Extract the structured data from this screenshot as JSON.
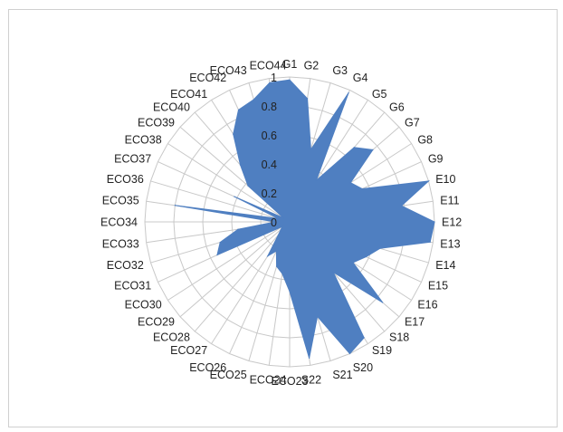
{
  "chart_data": {
    "type": "radar",
    "title": "",
    "categories": [
      "G1",
      "G2",
      "G3",
      "G4",
      "G5",
      "G6",
      "G7",
      "G8",
      "G9",
      "E10",
      "E11",
      "E12",
      "E13",
      "E14",
      "E15",
      "E16",
      "E17",
      "S18",
      "S19",
      "S20",
      "S21",
      "S22",
      "ECO23",
      "ECO24",
      "ECO25",
      "ECO26",
      "ECO27",
      "ECO28",
      "ECO29",
      "ECO30",
      "ECO31",
      "ECO32",
      "ECO33",
      "ECO34",
      "ECO35",
      "ECO36",
      "ECO37",
      "ECO38",
      "ECO39",
      "ECO40",
      "ECO41",
      "ECO42",
      "ECO43",
      "ECO44"
    ],
    "series": [
      {
        "values": [
          0.98,
          0.86,
          0.52,
          0.98,
          0.34,
          0.68,
          0.76,
          0.5,
          0.55,
          1.0,
          0.78,
          1.0,
          0.98,
          0.65,
          0.58,
          0.52,
          0.85,
          0.46,
          0.95,
          1.0,
          0.68,
          0.95,
          0.48,
          0.36,
          0.32,
          0.22,
          0.28,
          0.12,
          0.08,
          0.06,
          0.55,
          0.5,
          0.36,
          0.1,
          0.8,
          0.08,
          0.42,
          0.05,
          0.38,
          0.52,
          0.72,
          0.85,
          0.88,
          0.97
        ],
        "color": "#4f7fc1"
      }
    ],
    "rlim": [
      0,
      1
    ],
    "ticks": [
      "0",
      "0.2",
      "0.4",
      "0.6",
      "0.8",
      "1"
    ],
    "grid": true
  }
}
